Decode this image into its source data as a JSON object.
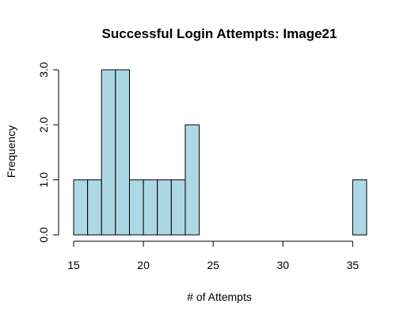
{
  "chart_data": {
    "type": "bar",
    "title": "Successful Login Attempts: Image21",
    "xlabel": "# of Attempts",
    "ylabel": "Frequency",
    "bin_width": 1,
    "bins": [
      {
        "x0": 15,
        "x1": 16,
        "count": 1
      },
      {
        "x0": 16,
        "x1": 17,
        "count": 1
      },
      {
        "x0": 17,
        "x1": 18,
        "count": 3
      },
      {
        "x0": 18,
        "x1": 19,
        "count": 3
      },
      {
        "x0": 19,
        "x1": 20,
        "count": 1
      },
      {
        "x0": 20,
        "x1": 21,
        "count": 1
      },
      {
        "x0": 21,
        "x1": 22,
        "count": 1
      },
      {
        "x0": 22,
        "x1": 23,
        "count": 1
      },
      {
        "x0": 23,
        "x1": 24,
        "count": 2
      },
      {
        "x0": 24,
        "x1": 25,
        "count": 0
      },
      {
        "x0": 25,
        "x1": 26,
        "count": 0
      },
      {
        "x0": 26,
        "x1": 27,
        "count": 0
      },
      {
        "x0": 27,
        "x1": 28,
        "count": 0
      },
      {
        "x0": 28,
        "x1": 29,
        "count": 0
      },
      {
        "x0": 29,
        "x1": 30,
        "count": 0
      },
      {
        "x0": 30,
        "x1": 31,
        "count": 0
      },
      {
        "x0": 31,
        "x1": 32,
        "count": 0
      },
      {
        "x0": 32,
        "x1": 33,
        "count": 0
      },
      {
        "x0": 33,
        "x1": 34,
        "count": 0
      },
      {
        "x0": 34,
        "x1": 35,
        "count": 0
      },
      {
        "x0": 35,
        "x1": 36,
        "count": 1
      }
    ],
    "xlim": [
      15,
      36
    ],
    "ylim": [
      0,
      3
    ],
    "x_ticks": [
      15,
      20,
      25,
      30,
      35
    ],
    "x_tick_labels": [
      "15",
      "20",
      "25",
      "30",
      "35"
    ],
    "y_ticks": [
      0,
      1,
      2,
      3
    ],
    "y_tick_labels": [
      "0.0",
      "1.0",
      "2.0",
      "3.0"
    ],
    "bar_color": "#add8e6",
    "border_color": "#000000",
    "grid": false
  }
}
